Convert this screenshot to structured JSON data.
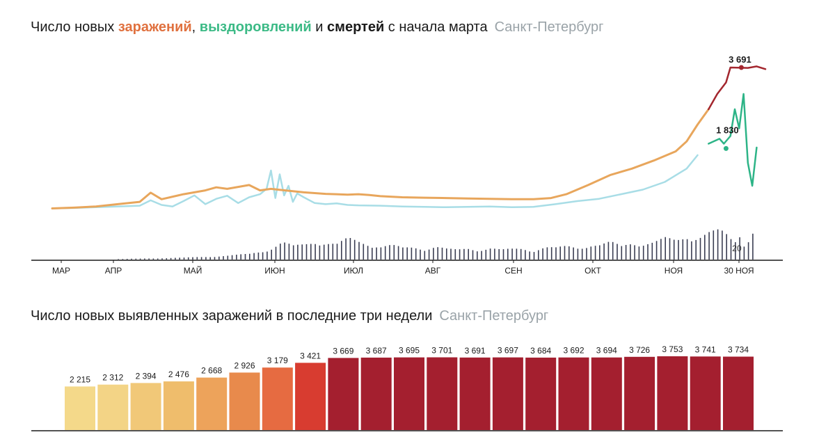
{
  "title_top": {
    "part1": "Число новых ",
    "infections": "заражений",
    "sep1": ", ",
    "recoveries": "выздоровлений",
    "sep2": " и ",
    "deaths": "смертей",
    "part2": " с начала марта",
    "city": "Санкт-Петербург"
  },
  "title_bottom": {
    "text": "Число новых выявленных заражений в последние три недели",
    "city": "Санкт-Петербург"
  },
  "colors": {
    "infections": "#e8a65c",
    "infections_recent": "#a3262e",
    "recoveries_light": "#a8dde6",
    "recoveries_recent": "#2db487",
    "deaths": "#3a3d52",
    "axis": "#1a1a1a",
    "text_dark": "#1a1a1a",
    "bar_palette": [
      "#f4d98a",
      "#f3d486",
      "#f1c878",
      "#efbd6c",
      "#eda35b",
      "#e88a4c",
      "#e66b41",
      "#d83c30",
      "#a41f2f"
    ]
  },
  "chart_data": [
    {
      "type": "line",
      "x_tick_labels": [
        "МАР",
        "АПР",
        "МАЙ",
        "ИЮН",
        "ИЮЛ",
        "АВГ",
        "СЕН",
        "ОКТ",
        "НОЯ",
        "30 НОЯ"
      ],
      "series": [
        {
          "name": "заражений",
          "points": [
            [
              0,
              10
            ],
            [
              10,
              30
            ],
            [
              20,
              60
            ],
            [
              30,
              120
            ],
            [
              40,
              180
            ],
            [
              45,
              420
            ],
            [
              50,
              250
            ],
            [
              60,
              380
            ],
            [
              70,
              480
            ],
            [
              75,
              560
            ],
            [
              80,
              520
            ],
            [
              90,
              620
            ],
            [
              95,
              480
            ],
            [
              100,
              520
            ],
            [
              105,
              490
            ],
            [
              110,
              460
            ],
            [
              115,
              430
            ],
            [
              120,
              410
            ],
            [
              125,
              390
            ],
            [
              130,
              380
            ],
            [
              135,
              370
            ],
            [
              140,
              380
            ],
            [
              145,
              360
            ],
            [
              150,
              330
            ],
            [
              160,
              300
            ],
            [
              170,
              290
            ],
            [
              180,
              280
            ],
            [
              190,
              270
            ],
            [
              200,
              260
            ],
            [
              210,
              250
            ],
            [
              220,
              250
            ],
            [
              228,
              280
            ],
            [
              235,
              380
            ],
            [
              245,
              620
            ],
            [
              255,
              880
            ],
            [
              265,
              1050
            ],
            [
              275,
              1260
            ],
            [
              285,
              1500
            ],
            [
              290,
              1760
            ],
            [
              295,
              2200
            ],
            [
              300,
              2600
            ],
            [
              304,
              3000
            ],
            [
              308,
              3300
            ],
            [
              310,
              3691
            ],
            [
              318,
              3680
            ],
            [
              322,
              3720
            ],
            [
              326,
              3650
            ]
          ],
          "annotation": {
            "label": "3 691",
            "x": 315,
            "y": 3691
          }
        },
        {
          "name": "выздоровлений",
          "points": [
            [
              0,
              10
            ],
            [
              10,
              20
            ],
            [
              20,
              40
            ],
            [
              30,
              60
            ],
            [
              40,
              80
            ],
            [
              45,
              220
            ],
            [
              50,
              100
            ],
            [
              55,
              60
            ],
            [
              60,
              200
            ],
            [
              65,
              350
            ],
            [
              70,
              120
            ],
            [
              75,
              260
            ],
            [
              80,
              340
            ],
            [
              85,
              150
            ],
            [
              90,
              300
            ],
            [
              95,
              380
            ],
            [
              98,
              520
            ],
            [
              100,
              1000
            ],
            [
              102,
              280
            ],
            [
              104,
              900
            ],
            [
              106,
              350
            ],
            [
              108,
              600
            ],
            [
              110,
              180
            ],
            [
              112,
              400
            ],
            [
              115,
              300
            ],
            [
              120,
              150
            ],
            [
              125,
              120
            ],
            [
              130,
              140
            ],
            [
              135,
              100
            ],
            [
              140,
              90
            ],
            [
              150,
              80
            ],
            [
              160,
              60
            ],
            [
              170,
              50
            ],
            [
              180,
              40
            ],
            [
              190,
              50
            ],
            [
              200,
              60
            ],
            [
              210,
              40
            ],
            [
              220,
              50
            ],
            [
              230,
              120
            ],
            [
              240,
              200
            ],
            [
              250,
              260
            ],
            [
              260,
              380
            ],
            [
              270,
              500
            ],
            [
              280,
              700
            ],
            [
              290,
              1050
            ],
            [
              295,
              1400
            ],
            [
              300,
              1700
            ],
            [
              305,
              1830
            ],
            [
              307,
              1700
            ],
            [
              310,
              1900
            ],
            [
              312,
              2600
            ],
            [
              314,
              2100
            ],
            [
              316,
              3000
            ],
            [
              318,
              1200
            ],
            [
              320,
              600
            ],
            [
              322,
              1600
            ]
          ],
          "annotation": {
            "label": "1 830",
            "x": 308,
            "y": 1830
          }
        },
        {
          "name": "смертей",
          "points": [
            [
              0,
              0
            ],
            [
              20,
              0
            ],
            [
              40,
              1
            ],
            [
              60,
              2
            ],
            [
              80,
              4
            ],
            [
              90,
              6
            ],
            [
              100,
              12
            ],
            [
              105,
              18
            ],
            [
              110,
              14
            ],
            [
              115,
              16
            ],
            [
              120,
              20
            ],
            [
              125,
              18
            ],
            [
              130,
              16
            ],
            [
              135,
              22
            ],
            [
              140,
              19
            ],
            [
              145,
              17
            ],
            [
              150,
              14
            ],
            [
              155,
              15
            ],
            [
              160,
              12
            ],
            [
              165,
              13
            ],
            [
              170,
              12
            ],
            [
              175,
              14
            ],
            [
              180,
              11
            ],
            [
              185,
              10
            ],
            [
              190,
              12
            ],
            [
              195,
              11
            ],
            [
              200,
              12
            ],
            [
              205,
              10
            ],
            [
              210,
              11
            ],
            [
              215,
              12
            ],
            [
              220,
              10
            ],
            [
              225,
              13
            ],
            [
              230,
              12
            ],
            [
              235,
              14
            ],
            [
              240,
              13
            ],
            [
              245,
              16
            ],
            [
              250,
              15
            ],
            [
              255,
              18
            ],
            [
              260,
              14
            ],
            [
              265,
              19
            ],
            [
              270,
              17
            ],
            [
              275,
              18
            ],
            [
              280,
              22
            ],
            [
              285,
              20
            ],
            [
              290,
              26
            ],
            [
              295,
              24
            ],
            [
              300,
              28
            ],
            [
              305,
              30
            ],
            [
              308,
              26
            ],
            [
              310,
              22
            ],
            [
              312,
              20
            ],
            [
              314,
              28
            ],
            [
              316,
              18
            ],
            [
              318,
              22
            ],
            [
              320,
              30
            ]
          ],
          "annotation": {
            "label": "20",
            "x": 312,
            "y": 20
          }
        }
      ]
    },
    {
      "type": "bar",
      "values": [
        2215,
        2312,
        2394,
        2476,
        2668,
        2926,
        3179,
        3421,
        3669,
        3687,
        3695,
        3701,
        3691,
        3697,
        3684,
        3692,
        3694,
        3726,
        3753,
        3741,
        3734
      ],
      "labels": [
        "2 215",
        "2 312",
        "2 394",
        "2 476",
        "2 668",
        "2 926",
        "3 179",
        "3 421",
        "3 669",
        "3 687",
        "3 695",
        "3 701",
        "3 691",
        "3 697",
        "3 684",
        "3 692",
        "3 694",
        "3 726",
        "3 753",
        "3 741",
        "3 734"
      ],
      "ylim": [
        0,
        4000
      ]
    }
  ]
}
